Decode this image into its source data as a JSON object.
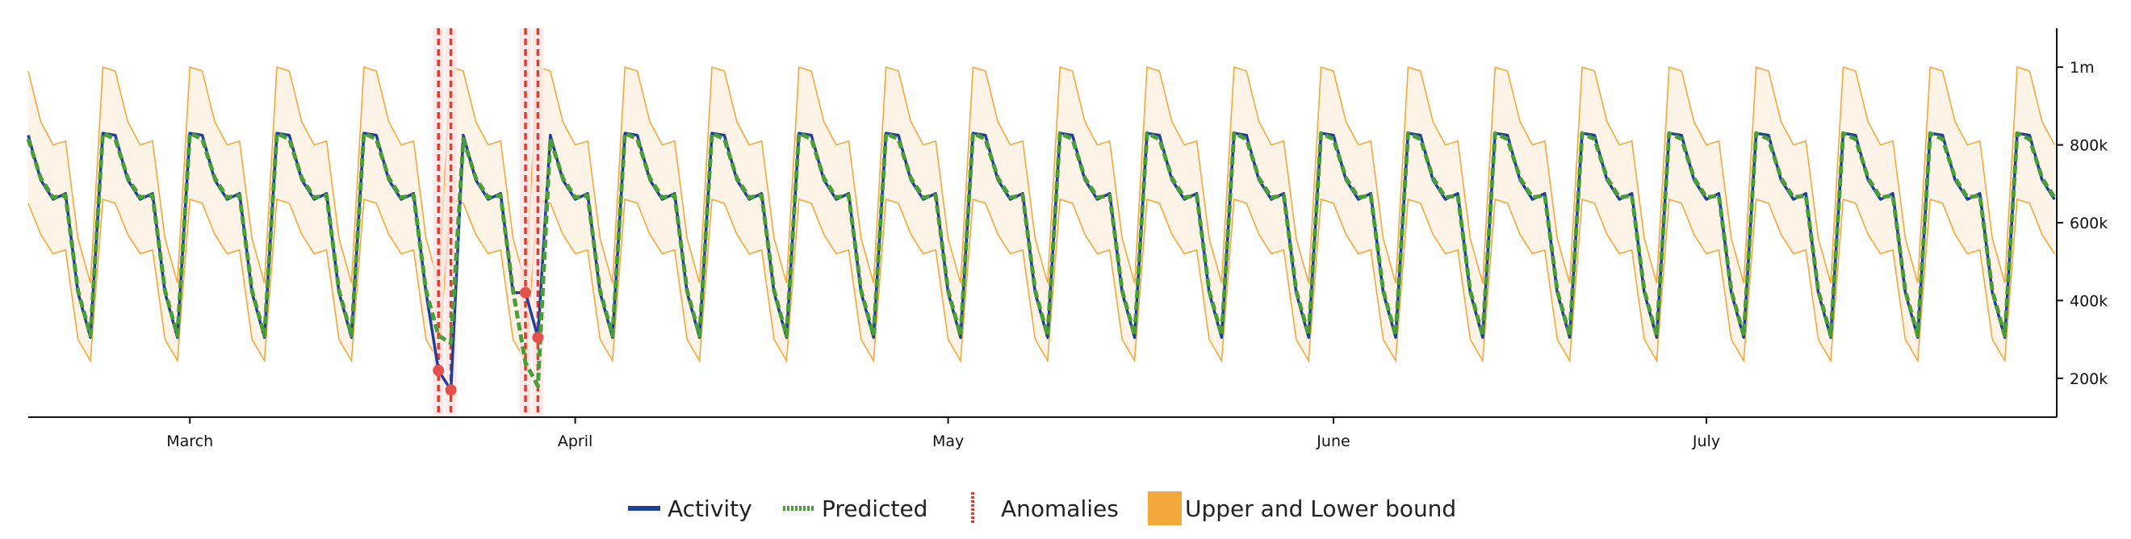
{
  "chart_data": {
    "type": "line",
    "title": "",
    "xlabel": "",
    "ylabel": "",
    "x_range_days": [
      0,
      163
    ],
    "ylim": [
      100000,
      1100000
    ],
    "x_ticks": [
      {
        "label": "March",
        "day": 13
      },
      {
        "label": "April",
        "day": 44
      },
      {
        "label": "May",
        "day": 74
      },
      {
        "label": "June",
        "day": 105
      },
      {
        "label": "July",
        "day": 135
      }
    ],
    "y_ticks": [
      {
        "label": "1m",
        "value": 1000000
      },
      {
        "label": "800k",
        "value": 800000
      },
      {
        "label": "600k",
        "value": 600000
      },
      {
        "label": "400k",
        "value": 400000
      },
      {
        "label": "200k",
        "value": 200000
      }
    ],
    "weekly_pattern": {
      "activity": [
        825000,
        710000,
        660000,
        675000,
        420000,
        305000,
        830000
      ],
      "predicted": [
        815000,
        715000,
        665000,
        670000,
        425000,
        310000,
        830000
      ],
      "upper": [
        990000,
        860000,
        800000,
        810000,
        560000,
        445000,
        1000000
      ],
      "lower": [
        650000,
        570000,
        520000,
        530000,
        300000,
        245000,
        660000
      ]
    },
    "series": [
      {
        "name": "Activity",
        "color": "#1f3f99"
      },
      {
        "name": "Predicted",
        "color": "#4a9e3a"
      },
      {
        "name": "Upper and Lower bound",
        "color": "#f2a93b"
      }
    ],
    "anomalies": [
      {
        "day": 33,
        "value": 220000
      },
      {
        "day": 34,
        "value": 170000
      },
      {
        "day": 40,
        "value": 420000
      },
      {
        "day": 41,
        "value": 305000
      }
    ],
    "anomaly_overrides": {
      "activity": {
        "33": 220000,
        "34": 170000,
        "40": 420000,
        "41": 305000
      },
      "predicted": {
        "34": 290000,
        "40": 240000,
        "41": 180000
      }
    },
    "legend": {
      "position": "bottom-center",
      "items": [
        {
          "label": "Activity",
          "kind": "solid-line",
          "color": "#1f3f99"
        },
        {
          "label": "Predicted",
          "kind": "dotted-line",
          "color": "#4a9e3a"
        },
        {
          "label": "Anomalies",
          "kind": "red-dashed-vertical",
          "color": "#e53a30"
        },
        {
          "label": "Upper and Lower bound",
          "kind": "filled-square",
          "color": "#f2a93b"
        }
      ]
    }
  }
}
